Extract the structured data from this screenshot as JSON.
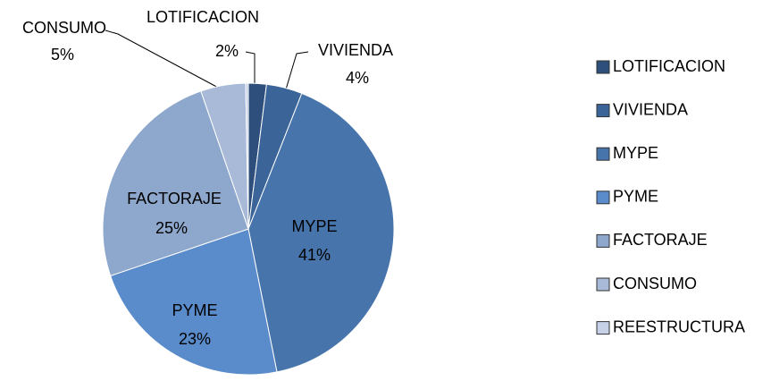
{
  "chart_data": {
    "type": "pie",
    "categories": [
      "LOTIFICACION",
      "VIVIENDA",
      "MYPE",
      "PYME",
      "FACTORAJE",
      "CONSUMO",
      "REESTRUCTURA"
    ],
    "values": [
      2,
      4,
      41,
      23,
      25,
      5,
      0.3
    ],
    "value_labels": [
      "2%",
      "4%",
      "41%",
      "23%",
      "25%",
      "5%",
      null
    ],
    "colors": [
      "#2e4f7c",
      "#3b6498",
      "#4674ab",
      "#5a8bca",
      "#8ea7cc",
      "#a9bad8",
      "#c6d0e6"
    ],
    "legend": "right"
  }
}
